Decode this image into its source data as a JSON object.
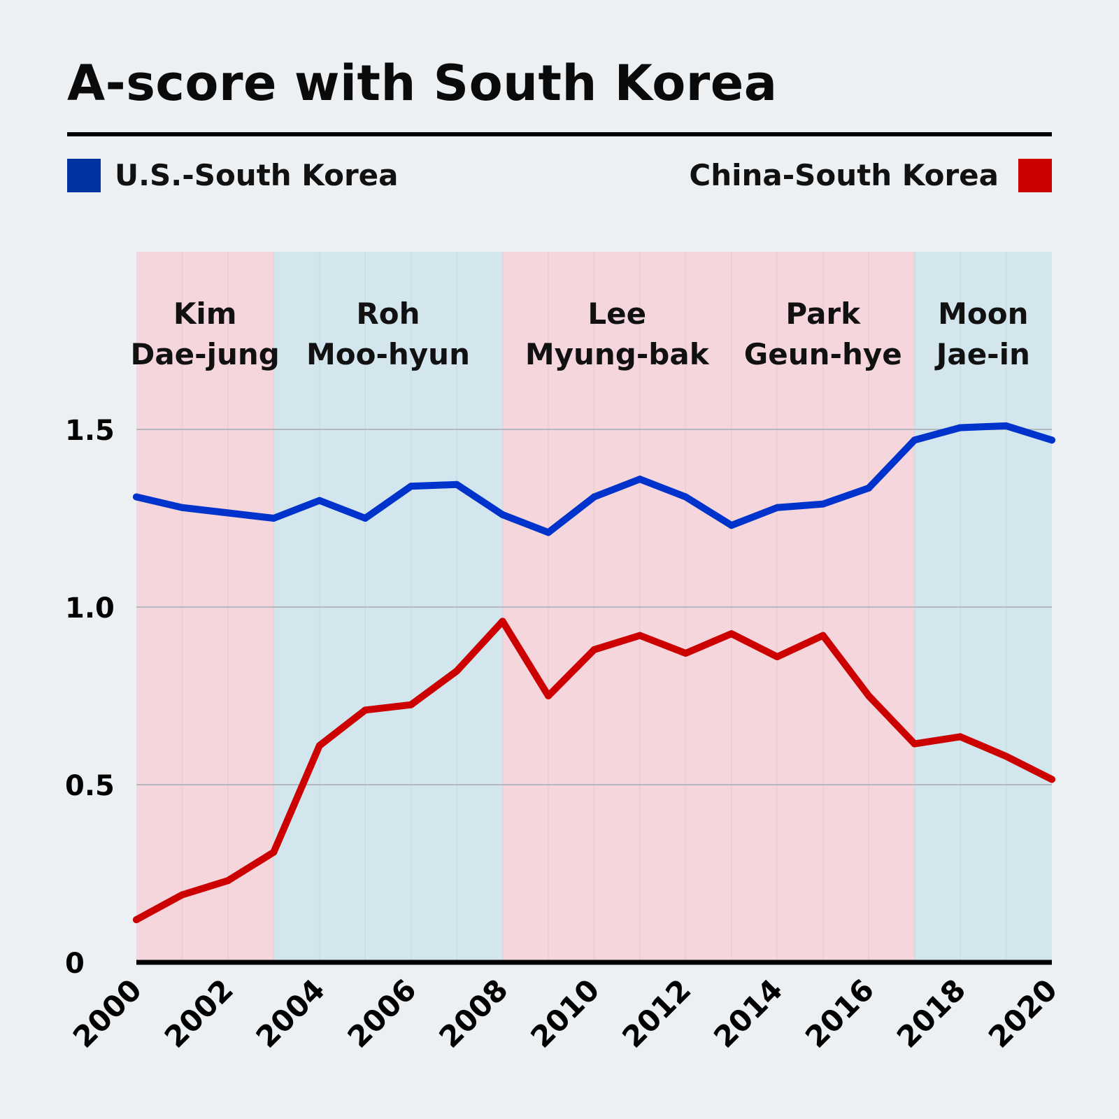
{
  "title": "A-score with South Korea",
  "legend": [
    {
      "label": "U.S.-South Korea",
      "color": "#0033a0"
    },
    {
      "label": "China-South Korea",
      "color": "#cc0000"
    }
  ],
  "chart_data": {
    "type": "line",
    "title": "A-score with South Korea",
    "xlabel": "",
    "ylabel": "",
    "x": [
      2000,
      2001,
      2002,
      2003,
      2004,
      2005,
      2006,
      2007,
      2008,
      2009,
      2010,
      2011,
      2012,
      2013,
      2014,
      2015,
      2016,
      2017,
      2018,
      2019,
      2020
    ],
    "xlim": [
      2000,
      2020
    ],
    "ylim": [
      0,
      2.0
    ],
    "x_ticks": [
      "2000",
      "2002",
      "2004",
      "2006",
      "2008",
      "2010",
      "2012",
      "2014",
      "2016",
      "2018",
      "2020"
    ],
    "y_ticks": [
      {
        "value": 0,
        "label": "0"
      },
      {
        "value": 0.5,
        "label": "0.5"
      },
      {
        "value": 1.0,
        "label": "1.0"
      },
      {
        "value": 1.5,
        "label": "1.5"
      }
    ],
    "grid": "horizontal",
    "legend_position": "top",
    "series": [
      {
        "name": "U.S.-South Korea",
        "color": "#0033cc",
        "values": [
          1.31,
          1.28,
          1.265,
          1.25,
          1.3,
          1.25,
          1.34,
          1.345,
          1.26,
          1.21,
          1.31,
          1.36,
          1.31,
          1.23,
          1.28,
          1.29,
          1.335,
          1.47,
          1.505,
          1.51,
          1.47
        ]
      },
      {
        "name": "China-South Korea",
        "color": "#cc0000",
        "values": [
          0.12,
          0.19,
          0.23,
          0.31,
          0.61,
          0.71,
          0.725,
          0.82,
          0.96,
          0.75,
          0.88,
          0.92,
          0.87,
          0.925,
          0.86,
          0.92,
          0.75,
          0.615,
          0.635,
          0.58,
          0.515
        ]
      }
    ],
    "eras": [
      {
        "line1": "Kim",
        "line2": "Dae-jung",
        "start": 2000,
        "end": 2003,
        "color": "#f5d6dd"
      },
      {
        "line1": "Roh",
        "line2": "Moo-hyun",
        "start": 2003,
        "end": 2008,
        "color": "#d3e6ee"
      },
      {
        "line1": "Lee",
        "line2": "Myung-bak",
        "start": 2008,
        "end": 2013,
        "color": "#f5d6dd"
      },
      {
        "line1": "Park",
        "line2": "Geun-hye",
        "start": 2013,
        "end": 2017,
        "color": "#f5d6dd"
      },
      {
        "line1": "Moon",
        "line2": "Jae-in",
        "start": 2017,
        "end": 2020,
        "color": "#d3e6ee"
      }
    ]
  }
}
